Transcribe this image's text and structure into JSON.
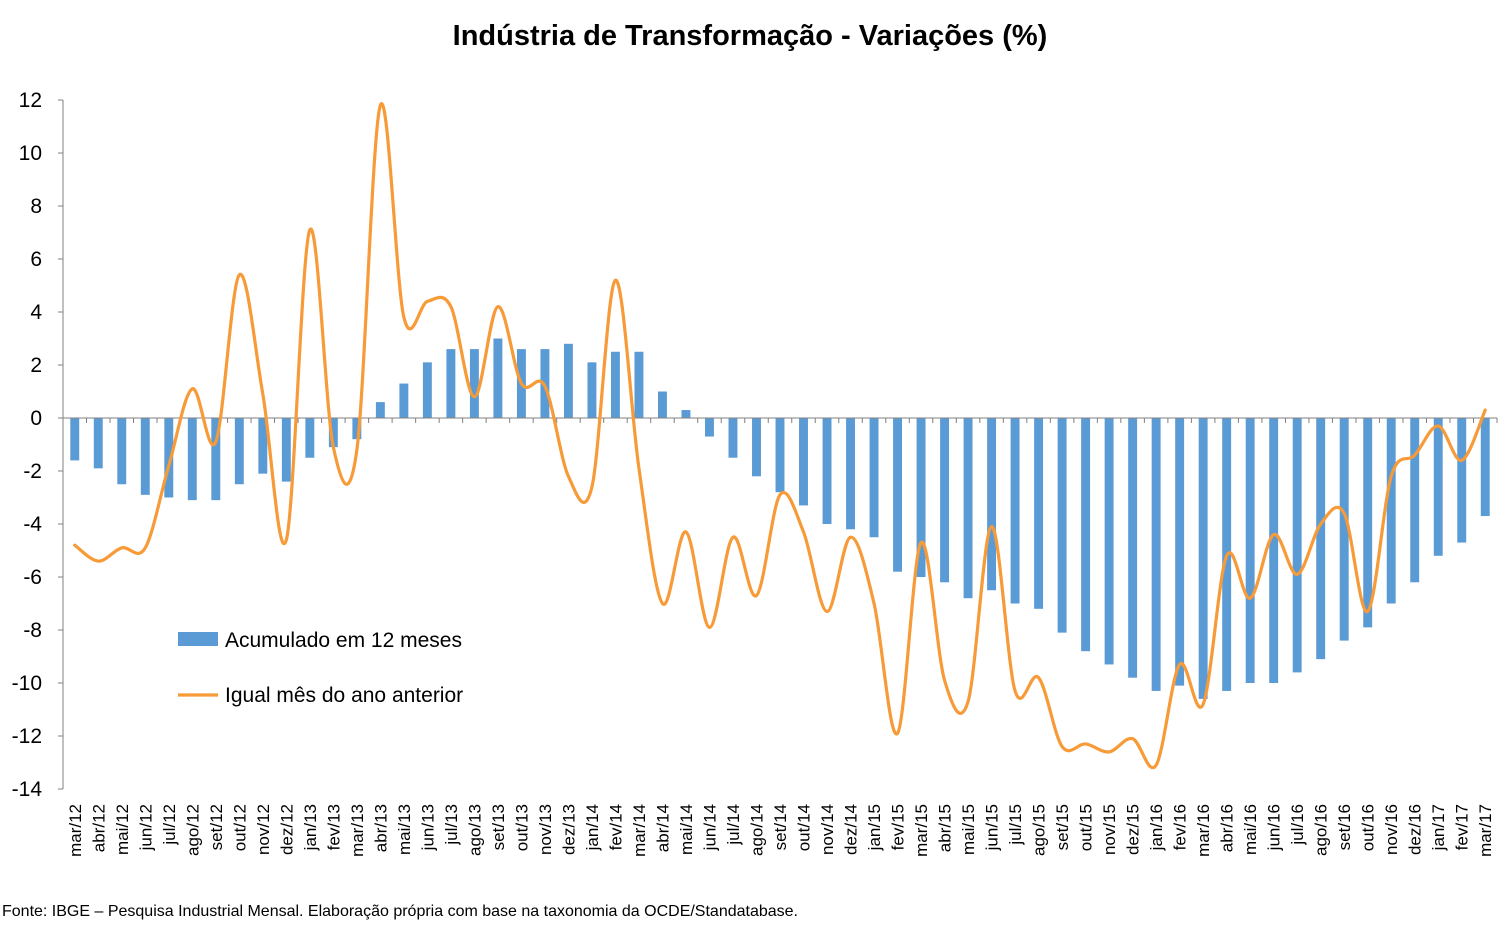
{
  "title": "Indústria de Transformação - Variações (%)",
  "source_note": "Fonte: IBGE – Pesquisa Industrial Mensal. Elaboração própria com base na taxonomia da OCDE/Standatabase.",
  "colors": {
    "bars": "#5b9bd5",
    "line": "#f79a38",
    "axis": "#808080"
  },
  "chart_data": {
    "type": "bar",
    "title": "Indústria de Transformação - Variações (%)",
    "xlabel": "",
    "ylabel": "",
    "ylim": [
      -14,
      12
    ],
    "yticks": [
      12,
      10,
      8,
      6,
      4,
      2,
      0,
      -2,
      -4,
      -6,
      -8,
      -10,
      -12,
      -14
    ],
    "grid": false,
    "legend_position": "left-middle",
    "categories": [
      "mar/12",
      "abr/12",
      "mai/12",
      "jun/12",
      "jul/12",
      "ago/12",
      "set/12",
      "out/12",
      "nov/12",
      "dez/12",
      "jan/13",
      "fev/13",
      "mar/13",
      "abr/13",
      "mai/13",
      "jun/13",
      "jul/13",
      "ago/13",
      "set/13",
      "out/13",
      "nov/13",
      "dez/13",
      "jan/14",
      "fev/14",
      "mar/14",
      "abr/14",
      "mai/14",
      "jun/14",
      "jul/14",
      "ago/14",
      "set/14",
      "out/14",
      "nov/14",
      "dez/14",
      "jan/15",
      "fev/15",
      "mar/15",
      "abr/15",
      "mai/15",
      "jun/15",
      "jul/15",
      "ago/15",
      "set/15",
      "out/15",
      "nov/15",
      "dez/15",
      "jan/16",
      "fev/16",
      "mar/16",
      "abr/16",
      "mai/16",
      "jun/16",
      "jul/16",
      "ago/16",
      "set/16",
      "out/16",
      "nov/16",
      "dez/16",
      "jan/17",
      "fev/17",
      "mar/17"
    ],
    "series": [
      {
        "name": "Acumulado em 12 meses",
        "type": "bar",
        "values": [
          -1.6,
          -1.9,
          -2.5,
          -2.9,
          -3.0,
          -3.1,
          -3.1,
          -2.5,
          -2.1,
          -2.4,
          -1.5,
          -1.1,
          -0.8,
          0.6,
          1.3,
          2.1,
          2.6,
          2.6,
          3.0,
          2.6,
          2.6,
          2.8,
          2.1,
          2.5,
          2.5,
          1.0,
          0.3,
          -0.7,
          -1.5,
          -2.2,
          -2.8,
          -3.3,
          -4.0,
          -4.2,
          -4.5,
          -5.8,
          -6.0,
          -6.2,
          -6.8,
          -6.5,
          -7.0,
          -7.2,
          -8.1,
          -8.8,
          -9.3,
          -9.8,
          -10.3,
          -10.1,
          -10.6,
          -10.3,
          -10.0,
          -10.0,
          -9.6,
          -9.1,
          -8.4,
          -7.9,
          -7.0,
          -6.2,
          -5.2,
          -4.7,
          -3.7
        ]
      },
      {
        "name": "Igual mês do ano anterior",
        "type": "line",
        "values": [
          -4.8,
          -5.4,
          -4.9,
          -4.9,
          -1.8,
          1.1,
          -0.9,
          5.4,
          0.9,
          -4.6,
          7.1,
          -1.1,
          -1.2,
          11.8,
          3.8,
          4.4,
          4.2,
          0.8,
          4.2,
          1.3,
          1.2,
          -2.2,
          -2.6,
          5.2,
          -1.9,
          -7.0,
          -4.3,
          -7.9,
          -4.5,
          -6.7,
          -2.9,
          -4.3,
          -7.3,
          -4.5,
          -7.0,
          -11.9,
          -4.7,
          -9.9,
          -10.7,
          -4.1,
          -10.3,
          -9.8,
          -12.4,
          -12.3,
          -12.6,
          -12.1,
          -13.1,
          -9.3,
          -10.8,
          -5.2,
          -6.8,
          -4.4,
          -5.9,
          -4.0,
          -3.6,
          -7.3,
          -2.2,
          -1.4,
          -0.3,
          -1.6,
          0.3
        ]
      }
    ]
  }
}
